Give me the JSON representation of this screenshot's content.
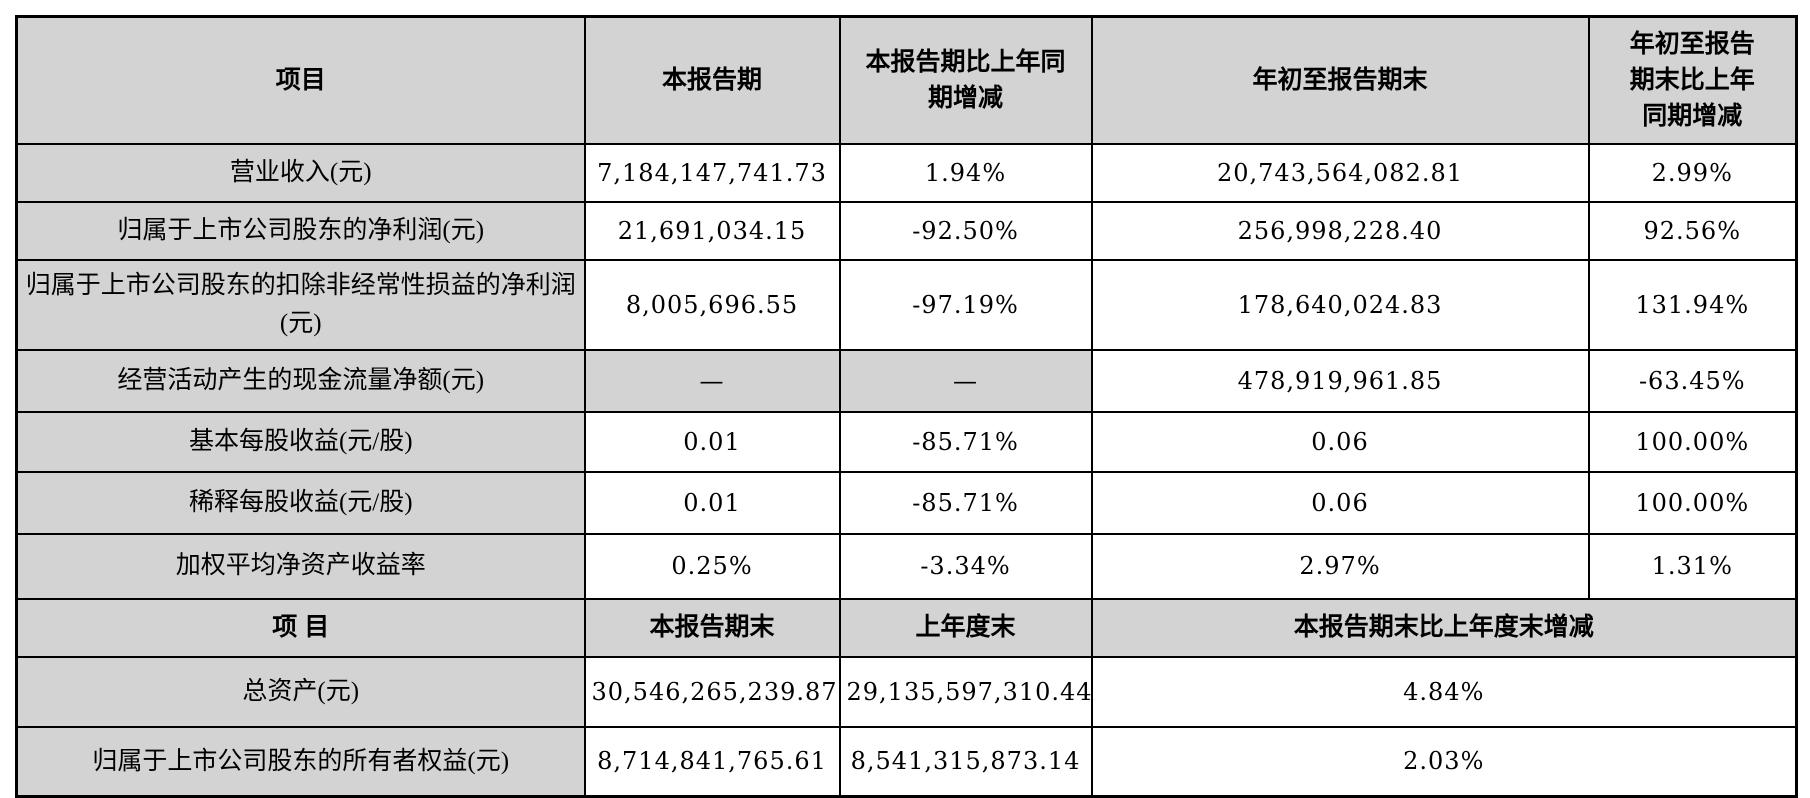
{
  "colors": {
    "shaded_cell_bg": "#d3d3d3",
    "data_cell_bg": "#ffffff",
    "border": "#000000",
    "text": "#000000"
  },
  "table": {
    "section1": {
      "headers": {
        "item": "项目",
        "current_period": "本报告期",
        "current_vs_prior_year": "本报告期比上年同期增减",
        "ytd": "年初至报告期末",
        "ytd_vs_prior_year": "年初至报告期末比上年同期增减"
      },
      "rows": [
        {
          "label": "营业收入(元)",
          "values": [
            "7,184,147,741.73",
            "1.94%",
            "20,743,564,082.81",
            "2.99%"
          ]
        },
        {
          "label": "归属于上市公司股东的净利润(元)",
          "values": [
            "21,691,034.15",
            "-92.50%",
            "256,998,228.40",
            "92.56%"
          ]
        },
        {
          "label": "归属于上市公司股东的扣除非经常性损益的净利润(元)",
          "values": [
            "8,005,696.55",
            "-97.19%",
            "178,640,024.83",
            "131.94%"
          ]
        },
        {
          "label": "经营活动产生的现金流量净额(元)",
          "values": [
            "—",
            "—",
            "478,919,961.85",
            "-63.45%"
          ]
        },
        {
          "label": "基本每股收益(元/股)",
          "values": [
            "0.01",
            "-85.71%",
            "0.06",
            "100.00%"
          ]
        },
        {
          "label": "稀释每股收益(元/股)",
          "values": [
            "0.01",
            "-85.71%",
            "0.06",
            "100.00%"
          ]
        },
        {
          "label": "加权平均净资产收益率",
          "values": [
            "0.25%",
            "-3.34%",
            "2.97%",
            "1.31%"
          ]
        }
      ]
    },
    "section2": {
      "headers": {
        "item": "项 目",
        "end_of_period": "本报告期末",
        "end_of_prior_year": "上年度末",
        "end_vs_prior_year_end": "本报告期末比上年度末增减"
      },
      "rows": [
        {
          "label": "总资产(元)",
          "values": [
            "30,546,265,239.87",
            "29,135,597,310.44",
            "4.84%"
          ]
        },
        {
          "label": "归属于上市公司股东的所有者权益(元)",
          "values": [
            "8,714,841,765.61",
            "8,541,315,873.14",
            "2.03%"
          ]
        }
      ]
    }
  }
}
